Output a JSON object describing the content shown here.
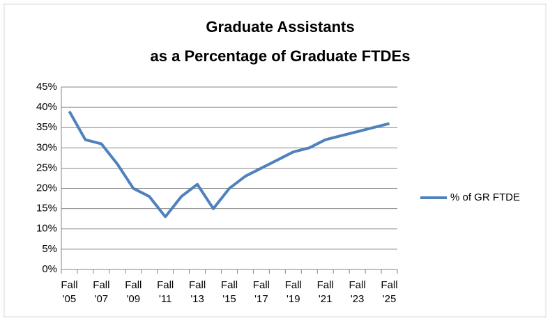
{
  "chart_data": {
    "type": "line",
    "title": [
      "Graduate Assistants",
      "as a Percentage of Graduate FTDEs"
    ],
    "categories": [
      "Fall '05",
      null,
      "Fall '07",
      null,
      "Fall '09",
      null,
      "Fall '11",
      null,
      "Fall '13",
      null,
      "Fall '15",
      null,
      "Fall '17",
      null,
      "Fall '19",
      null,
      "Fall '21",
      null,
      "Fall '23",
      null,
      "Fall '25"
    ],
    "series": [
      {
        "name": "% of GR FTDE",
        "color": "#4f81bd",
        "values": [
          39,
          32,
          31,
          26,
          20,
          18,
          13,
          18,
          21,
          15,
          20,
          23,
          25,
          27,
          29,
          30,
          32,
          33,
          34,
          35,
          36
        ]
      }
    ],
    "ylim": [
      0,
      45
    ],
    "yticks": [
      {
        "value": 0,
        "label": "0%"
      },
      {
        "value": 5,
        "label": "5%"
      },
      {
        "value": 10,
        "label": "10%"
      },
      {
        "value": 15,
        "label": "15%"
      },
      {
        "value": 20,
        "label": "20%"
      },
      {
        "value": 25,
        "label": "25%"
      },
      {
        "value": 30,
        "label": "30%"
      },
      {
        "value": 35,
        "label": "35%"
      },
      {
        "value": 40,
        "label": "40%"
      },
      {
        "value": 45,
        "label": "45%"
      }
    ],
    "grid": true,
    "legend": "right"
  }
}
